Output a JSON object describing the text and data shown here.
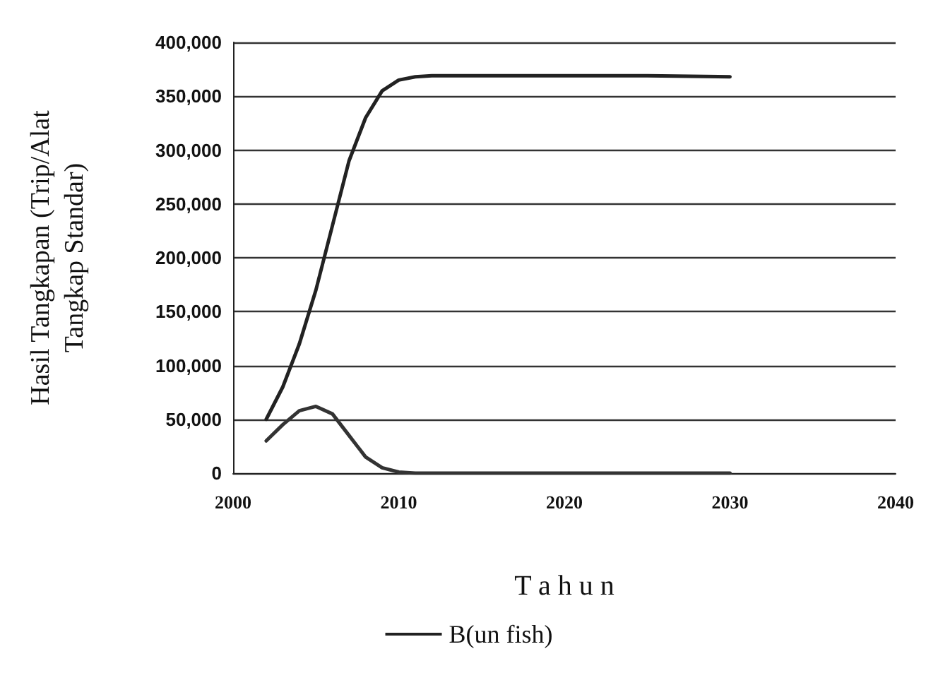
{
  "chart_data": {
    "type": "line",
    "xlabel": "T a h u n",
    "ylabel": "Hasil Tangkapan (Trip/Alat\nTangkap Standar)",
    "xlim": [
      2000,
      2040
    ],
    "xticks": [
      2000,
      2010,
      2020,
      2030,
      2040
    ],
    "ylim": [
      0,
      400000
    ],
    "yticks": [
      0,
      {
        "value": 50000,
        "label": "50,000"
      },
      {
        "value": 100000,
        "label": "100,000"
      },
      {
        "value": 150000,
        "label": "150,000"
      },
      {
        "value": 200000,
        "label": "200,000"
      },
      {
        "value": 250000,
        "label": "250,000"
      },
      {
        "value": 300000,
        "label": "300,000"
      },
      {
        "value": 350000,
        "label": "350,000"
      },
      {
        "value": 400000,
        "label": "400,000"
      }
    ],
    "grid": "y",
    "legend": "bottom",
    "marker": "none",
    "line_style": "solid",
    "series": [
      {
        "name": "B(un fish)",
        "color": "#222222",
        "x": [
          2002,
          2003,
          2004,
          2005,
          2006,
          2007,
          2008,
          2009,
          2010,
          2011,
          2012,
          2015,
          2020,
          2025,
          2030
        ],
        "values": [
          50000,
          80000,
          120000,
          170000,
          230000,
          290000,
          330000,
          355000,
          365000,
          368000,
          369000,
          369000,
          369000,
          369000,
          368000
        ]
      },
      {
        "color": "#333333",
        "x": [
          2002,
          2003,
          2004,
          2005,
          2006,
          2007,
          2008,
          2009,
          2010,
          2011,
          2015,
          2020,
          2025,
          2030
        ],
        "values": [
          30000,
          45000,
          58000,
          62000,
          55000,
          35000,
          15000,
          5000,
          1000,
          0,
          0,
          0,
          0,
          0
        ]
      }
    ]
  }
}
